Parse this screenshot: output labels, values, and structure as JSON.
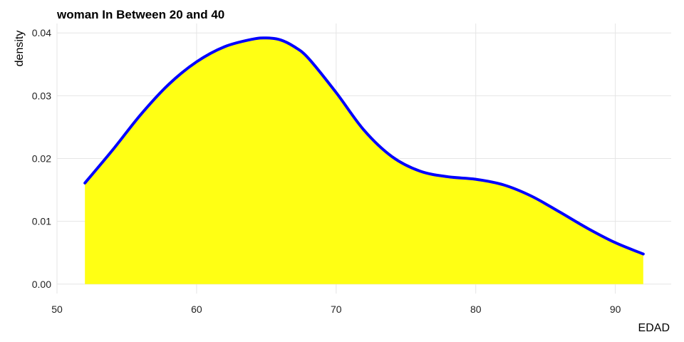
{
  "chart_data": {
    "type": "area",
    "title": "woman In Between 20 and 40",
    "xlabel": "EDAD",
    "ylabel": "density",
    "xlim": [
      50,
      94
    ],
    "ylim": [
      -0.0015,
      0.0415
    ],
    "x_ticks": [
      50,
      60,
      70,
      80,
      90
    ],
    "x_tick_labels": [
      "50",
      "60",
      "70",
      "80",
      "90"
    ],
    "y_ticks": [
      0.0,
      0.01,
      0.02,
      0.03,
      0.04
    ],
    "y_tick_labels": [
      "0.00",
      "0.01",
      "0.02",
      "0.03",
      "0.04"
    ],
    "grid": true,
    "fill_color": "#ffff14",
    "line_color": "#0000ff",
    "series": [
      {
        "x": [
          52,
          54,
          56,
          58,
          60,
          62,
          64,
          65,
          66,
          67,
          68,
          70,
          72,
          74,
          76,
          78,
          80,
          82,
          84,
          86,
          88,
          90,
          92
        ],
        "y": [
          0.0161,
          0.0214,
          0.027,
          0.0318,
          0.0354,
          0.0378,
          0.039,
          0.0392,
          0.0389,
          0.0378,
          0.036,
          0.0305,
          0.0245,
          0.0203,
          0.018,
          0.0171,
          0.0167,
          0.0158,
          0.014,
          0.0115,
          0.0089,
          0.0066,
          0.0048
        ]
      }
    ]
  }
}
